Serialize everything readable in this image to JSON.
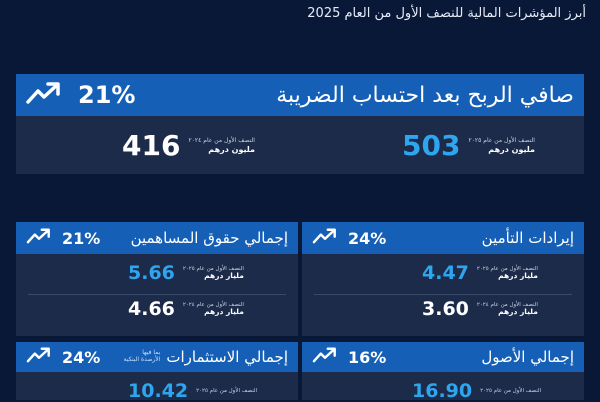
{
  "page": {
    "title": "أبرز المؤشرات المالية للنصف الأول من العام 2025"
  },
  "colors": {
    "background": "#0a1838",
    "card": "#1d2b4a",
    "header": "#1560b6",
    "accent": "#2ea6ef"
  },
  "icons": {
    "trend": "trend-up-arrow-icon"
  },
  "cards": {
    "net_profit": {
      "title": "صافي الربح بعد احتساب الضريبة",
      "change": "21%",
      "current": {
        "value": "503",
        "period": "النصف الأول من عام ٢٠٢٥",
        "unit": "مليون درهم"
      },
      "previous": {
        "value": "416",
        "period": "النصف الأول من عام ٢٠٢٤",
        "unit": "مليون درهم"
      }
    },
    "equity": {
      "title": "إجمالي حقوق المساهمين",
      "change": "21%",
      "current": {
        "value": "5.66",
        "period": "النصف الأول من عام ٢٠٢٥",
        "unit": "مليار درهم"
      },
      "previous": {
        "value": "4.66",
        "period": "النصف الأول من عام ٢٠٢٤",
        "unit": "مليار درهم"
      }
    },
    "insurance_revenue": {
      "title": "إيرادات التأمين",
      "change": "24%",
      "current": {
        "value": "4.47",
        "period": "النصف الأول من عام ٢٠٢٥",
        "unit": "مليار درهم"
      },
      "previous": {
        "value": "3.60",
        "period": "النصف الأول من عام ٢٠٢٤",
        "unit": "مليار درهم"
      }
    },
    "investments": {
      "title": "إجمالي الاستثمارات",
      "note_line1": "بما فيها",
      "note_line2": "الأرصدة البنكية",
      "change": "24%",
      "current": {
        "value": "10.42",
        "period": "النصف الأول من عام ٢٠٢٥"
      }
    },
    "assets": {
      "title": "إجمالي الأصول",
      "change": "16%",
      "current": {
        "value": "16.90",
        "period": "النصف الأول من عام ٢٠٢٥"
      }
    }
  }
}
